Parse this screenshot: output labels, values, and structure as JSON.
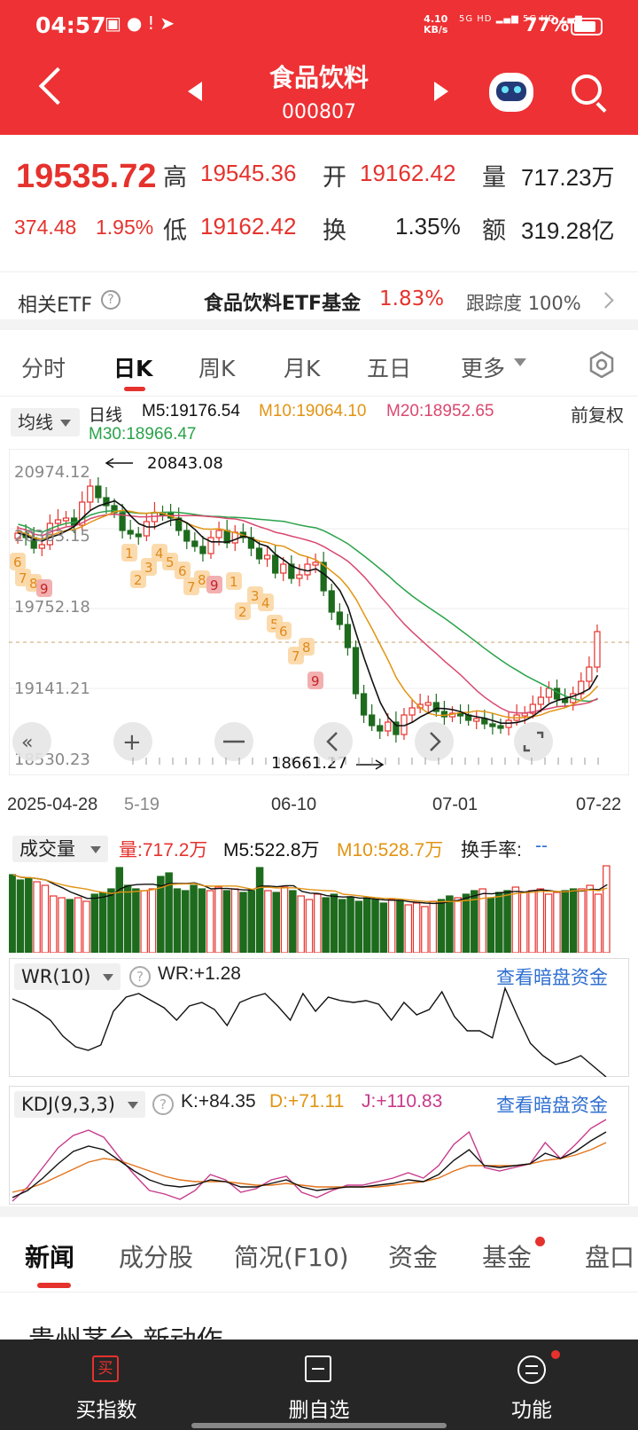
{
  "status": {
    "time": "04:57",
    "net_speed": "4.10",
    "net_unit": "KB/s",
    "signal1": "5G HD",
    "signal2": "5G HD",
    "battery": "77%"
  },
  "header": {
    "title": "食品饮料",
    "code": "000807"
  },
  "quote": {
    "price": "19535.72",
    "change": "374.48",
    "change_pct": "1.95%",
    "high_label": "高",
    "high": "19545.36",
    "open_label": "开",
    "open": "19162.42",
    "vol_label": "量",
    "vol": "717.23万",
    "low_label": "低",
    "low": "19162.42",
    "turnover_label": "换",
    "turnover": "1.35%",
    "amount_label": "额",
    "amount": "319.28亿"
  },
  "etf": {
    "label": "相关ETF",
    "help": "?",
    "name": "食品饮料ETF基金",
    "pct": "1.83%",
    "track_label": "跟踪度",
    "track": "100%"
  },
  "tabs": {
    "intraday": "分时",
    "day": "日K",
    "week": "周K",
    "month": "月K",
    "five_day": "五日",
    "more": "更多"
  },
  "ma": {
    "select": "均线",
    "period": "日线",
    "m5": "M5:19176.54",
    "m10": "M10:19064.10",
    "m20": "M20:18952.65",
    "m30": "M30:18966.47",
    "adjust": "前复权"
  },
  "kline": {
    "y_labels": [
      "20974.12",
      "20363.15",
      "19752.18",
      "19141.21",
      "18530.23"
    ],
    "max_label": "20843.08",
    "min_label": "18661.27",
    "x_labels": [
      "2025-04-28",
      "5-19",
      "06-10",
      "07-01",
      "07-22"
    ],
    "td_labels": [
      "6",
      "7",
      "8",
      "9",
      "1",
      "2",
      "3",
      "4",
      "5",
      "6",
      "7",
      "8",
      "9",
      "1",
      "2",
      "3",
      "4",
      "5",
      "6",
      "7",
      "8",
      "9"
    ]
  },
  "volume": {
    "select": "成交量",
    "vol": "量:717.2万",
    "m5": "M5:522.8万",
    "m10": "M10:528.7万",
    "turnover": "换手率:",
    "turnover_val": "--"
  },
  "wr": {
    "select": "WR(10)",
    "help": "?",
    "value": "WR:+1.28",
    "link": "查看暗盘资金"
  },
  "kdj": {
    "select": "KDJ(9,3,3)",
    "help": "?",
    "k": "K:+84.35",
    "d": "D:+71.11",
    "j": "J:+110.83",
    "link": "查看暗盘资金"
  },
  "bottom_tabs": {
    "news": "新闻",
    "components": "成分股",
    "profile": "简况(F10)",
    "capital": "资金",
    "fund": "基金",
    "market": "盘口"
  },
  "news": {
    "first_title": "贵州茅台 新动作"
  },
  "bottom_bar": {
    "buy_icon": "买",
    "buy": "买指数",
    "unwatch": "删自选",
    "functions": "功能"
  },
  "colors": {
    "header": "#ee3134",
    "rise": "#e5322d",
    "fall": "#1e6b1e",
    "ma5": "#111111",
    "ma10": "#e29412",
    "ma20": "#d9486f",
    "ma30": "#2aa34a"
  }
}
